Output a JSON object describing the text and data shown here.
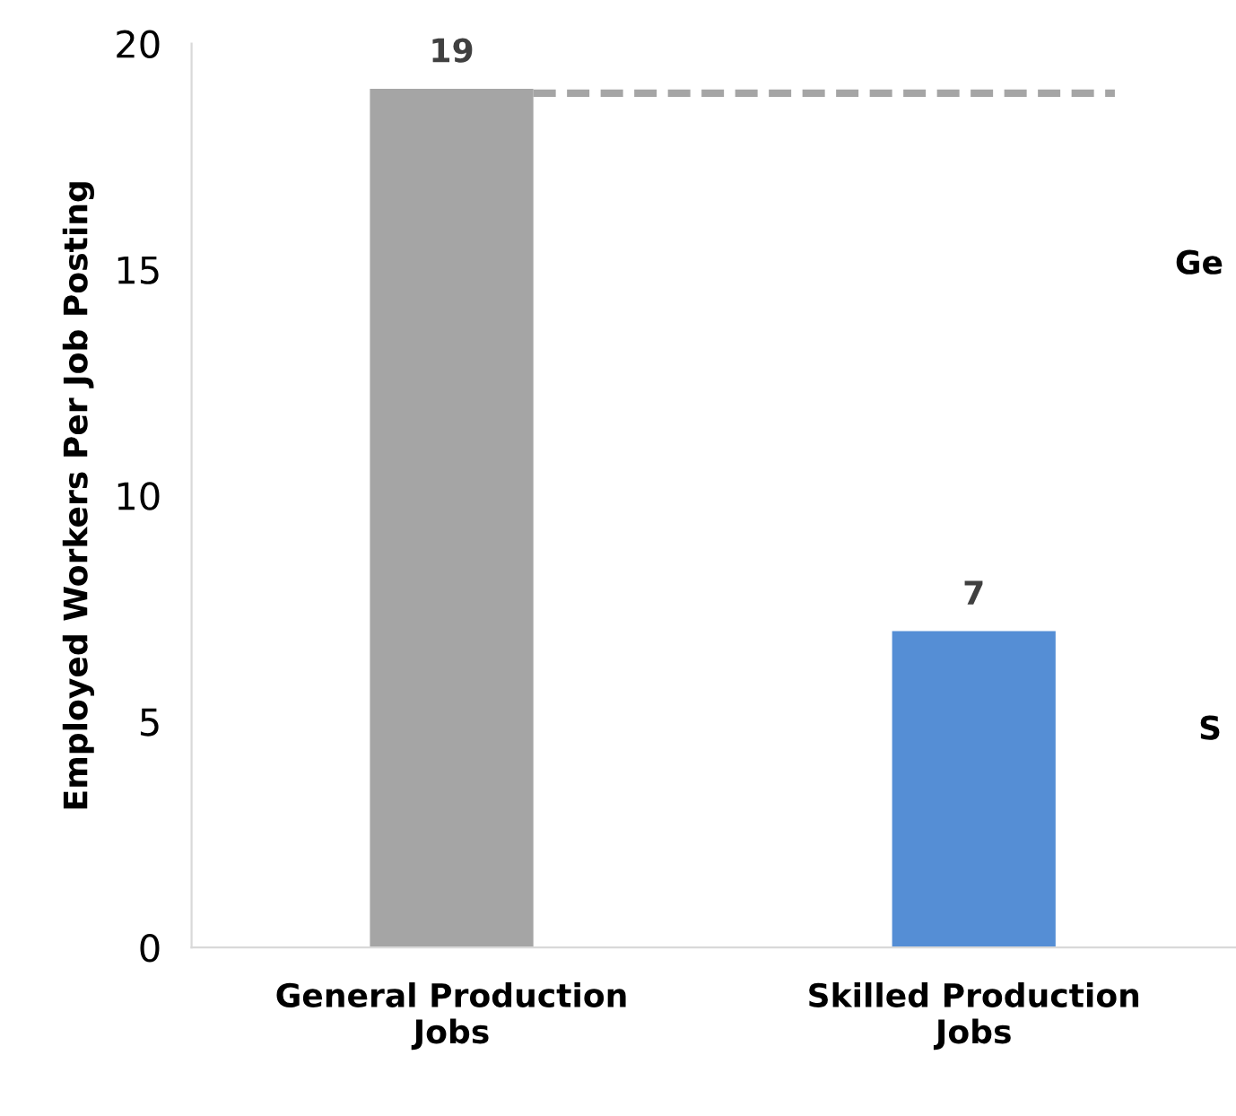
{
  "chart_data": {
    "type": "bar",
    "ylabel": "Employed Workers Per Job Posting",
    "categories": [
      "General Production\nJobs",
      "Skilled Production\nJobs"
    ],
    "values": [
      19,
      7
    ],
    "colors": [
      "#a5a5a5",
      "#558ed5"
    ],
    "ylim": [
      0,
      20
    ],
    "yticks": [
      0,
      5,
      10,
      15,
      20
    ],
    "grid": false,
    "data_labels": true,
    "ref_lines": [
      {
        "axis": "y",
        "value": 18.9,
        "color": "#a5a5a5",
        "line_style": "dashed"
      }
    ],
    "annotations": [
      "Ge",
      "S"
    ]
  }
}
